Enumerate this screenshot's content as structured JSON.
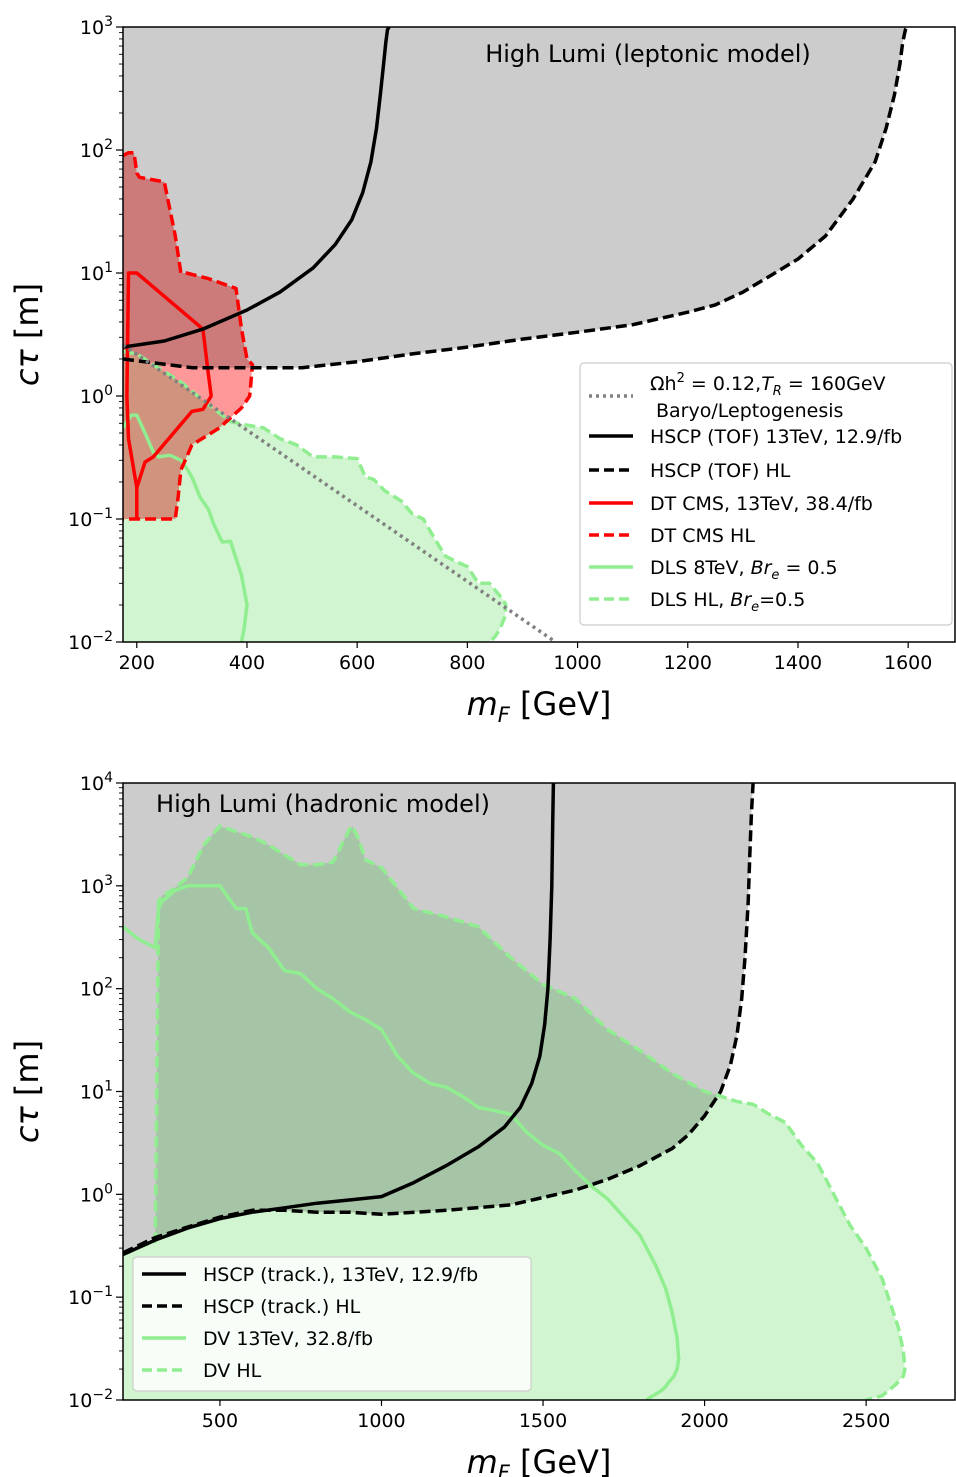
{
  "chart_data": [
    {
      "type": "area",
      "annotation": "High Lumi (leptonic model)",
      "xlabel": "m_F [GeV]",
      "ylabel": "cτ [m]",
      "xlim": [
        175,
        1685
      ],
      "ylim": [
        0.01,
        1000
      ],
      "yscale": "log",
      "xticks": [
        200,
        400,
        600,
        800,
        1000,
        1200,
        1400,
        1600
      ],
      "yticks": [
        0.01,
        0.1,
        1,
        10,
        100,
        1000
      ],
      "ytick_labels": [
        {
          "base": "10",
          "exp": "−2"
        },
        {
          "base": "10",
          "exp": "−1"
        },
        {
          "base": "10",
          "exp": "0"
        },
        {
          "base": "10",
          "exp": "1"
        },
        {
          "base": "10",
          "exp": "2"
        },
        {
          "base": "10",
          "exp": "3"
        }
      ],
      "legend_position": "right",
      "series": [
        {
          "key": "bbn",
          "color": "#808080",
          "dash": "dotted",
          "fill": null,
          "label_lines": [
            "Ωh² = 0.12, T_R = 160GeV",
            "Baryo/Leptogenesis"
          ],
          "x": [
            175,
            960
          ],
          "y": [
            2.6,
            0.01
          ]
        },
        {
          "key": "hscp_13",
          "color": "#000000",
          "dash": "solid",
          "fill": null,
          "label": "HSCP (TOF) 13TeV, 12.9/fb",
          "x": [
            175,
            250,
            320,
            400,
            460,
            520,
            560,
            590,
            610,
            625,
            635,
            642,
            648,
            652,
            655,
            658
          ],
          "y": [
            2.5,
            2.8,
            3.5,
            5.0,
            7.0,
            11,
            17,
            27,
            45,
            80,
            150,
            280,
            500,
            750,
            950,
            1000
          ]
        },
        {
          "key": "hscp_hl",
          "color": "#000000",
          "dash": "dashed",
          "fill": "#cccccc",
          "label": "HSCP (TOF) HL",
          "x": [
            175,
            300,
            350,
            500,
            600,
            700,
            800,
            900,
            1000,
            1100,
            1200,
            1250,
            1300,
            1350,
            1400,
            1450,
            1500,
            1540,
            1560,
            1575,
            1585,
            1590,
            1595,
            1598
          ],
          "y": [
            2.0,
            1.7,
            1.7,
            1.7,
            1.9,
            2.2,
            2.5,
            2.9,
            3.3,
            3.8,
            4.8,
            5.5,
            7.0,
            9.5,
            13,
            20,
            40,
            80,
            150,
            280,
            500,
            750,
            950,
            1000
          ]
        },
        {
          "key": "dt_13",
          "color": "#ff0000",
          "dash": "solid",
          "fill": null,
          "label": "DT CMS, 13TeV, 38.4/fb",
          "x": [
            200,
            200,
            185,
            182,
            185,
            200,
            320,
            330,
            335,
            320,
            300,
            230,
            215,
            200,
            200
          ],
          "y": [
            0.1,
            0.18,
            0.45,
            1.0,
            10,
            10,
            3.5,
            1.5,
            1.0,
            0.78,
            0.75,
            0.32,
            0.29,
            0.18,
            0.1
          ]
        },
        {
          "key": "dt_hl",
          "color": "#ff0000",
          "dash": "dashed",
          "fill": "#ff9999",
          "label": "DT CMS HL",
          "x": [
            175,
            185,
            195,
            200,
            205,
            250,
            270,
            280,
            290,
            330,
            380,
            390,
            400,
            410,
            405,
            390,
            350,
            300,
            280,
            275,
            270,
            175
          ],
          "y": [
            90,
            95,
            95,
            65,
            60,
            55,
            20,
            10,
            10,
            9.0,
            7.5,
            3.5,
            2.0,
            1.8,
            1.0,
            0.8,
            0.55,
            0.4,
            0.25,
            0.15,
            0.1,
            0.1
          ]
        },
        {
          "key": "dls_8",
          "color": "#90ee90",
          "dash": "solid",
          "fill": null,
          "label": "DLS 8TeV, Br_e = 0.5",
          "x": [
            175,
            190,
            200,
            215,
            230,
            240,
            260,
            280,
            290,
            300,
            315,
            330,
            340,
            355,
            370,
            390,
            400,
            395,
            390
          ],
          "y": [
            0.55,
            0.7,
            0.7,
            0.5,
            0.35,
            0.32,
            0.33,
            0.3,
            0.26,
            0.22,
            0.15,
            0.12,
            0.09,
            0.065,
            0.066,
            0.035,
            0.02,
            0.013,
            0.01
          ]
        },
        {
          "key": "dls_hl",
          "color": "#90ee90",
          "dash": "dashed",
          "fill": "#d0f5d0",
          "label": "DLS HL, Br_e=0.5",
          "x": [
            175,
            200,
            230,
            280,
            330,
            370,
            400,
            430,
            460,
            490,
            520,
            560,
            600,
            615,
            630,
            650,
            680,
            700,
            720,
            740,
            760,
            780,
            800,
            820,
            840,
            855,
            865,
            870,
            868,
            860,
            850,
            840
          ],
          "y": [
            2.3,
            2.2,
            1.8,
            1.3,
            0.85,
            0.62,
            0.58,
            0.55,
            0.45,
            0.4,
            0.32,
            0.32,
            0.31,
            0.22,
            0.21,
            0.17,
            0.14,
            0.11,
            0.1,
            0.07,
            0.05,
            0.045,
            0.041,
            0.03,
            0.03,
            0.025,
            0.022,
            0.02,
            0.016,
            0.013,
            0.011,
            0.01
          ]
        }
      ]
    },
    {
      "type": "area",
      "annotation": "High Lumi (hadronic model)",
      "xlabel": "m_F [GeV]",
      "ylabel": "cτ [m]",
      "xlim": [
        200,
        2775
      ],
      "ylim": [
        0.01,
        10000
      ],
      "yscale": "log",
      "xticks": [
        500,
        1000,
        1500,
        2000,
        2500
      ],
      "yticks": [
        0.01,
        0.1,
        1,
        10,
        100,
        1000,
        10000
      ],
      "ytick_labels": [
        {
          "base": "10",
          "exp": "−2"
        },
        {
          "base": "10",
          "exp": "−1"
        },
        {
          "base": "10",
          "exp": "0"
        },
        {
          "base": "10",
          "exp": "1"
        },
        {
          "base": "10",
          "exp": "2"
        },
        {
          "base": "10",
          "exp": "3"
        },
        {
          "base": "10",
          "exp": "4"
        }
      ],
      "legend_position": "lower left",
      "series": [
        {
          "key": "hscp_tr_13",
          "color": "#000000",
          "dash": "solid",
          "fill": null,
          "label": "HSCP (track.), 13TeV, 12.9/fb",
          "x": [
            200,
            300,
            400,
            500,
            600,
            700,
            800,
            900,
            1000,
            1100,
            1200,
            1300,
            1380,
            1430,
            1465,
            1490,
            1505,
            1515,
            1522,
            1527,
            1530,
            1532
          ],
          "y": [
            0.26,
            0.36,
            0.47,
            0.58,
            0.67,
            0.74,
            0.82,
            0.88,
            0.95,
            1.3,
            1.9,
            2.9,
            4.5,
            7.0,
            12,
            22,
            45,
            100,
            300,
            1000,
            4000,
            10000
          ]
        },
        {
          "key": "hscp_tr_hl",
          "color": "#000000",
          "dash": "dashed",
          "fill": "#cccccc",
          "label": "HSCP (track.) HL",
          "x": [
            200,
            300,
            400,
            500,
            600,
            700,
            800,
            900,
            1000,
            1200,
            1400,
            1600,
            1700,
            1800,
            1900,
            1950,
            2000,
            2050,
            2080,
            2100,
            2115,
            2125,
            2135,
            2140,
            2145,
            2150
          ],
          "y": [
            0.27,
            0.38,
            0.48,
            0.6,
            0.7,
            0.7,
            0.67,
            0.67,
            0.64,
            0.7,
            0.79,
            1.1,
            1.4,
            1.9,
            2.8,
            3.8,
            5.8,
            10,
            18,
            35,
            80,
            200,
            700,
            2000,
            5000,
            10000
          ]
        },
        {
          "key": "dv_13",
          "color": "#90ee90",
          "dash": "solid",
          "fill": null,
          "label": "DV 13TeV, 32.8/fb",
          "x": [
            200,
            250,
            300,
            310,
            320,
            360,
            400,
            450,
            500,
            550,
            580,
            600,
            650,
            700,
            750,
            800,
            850,
            900,
            950,
            1000,
            1050,
            1100,
            1150,
            1200,
            1250,
            1300,
            1350,
            1400,
            1450,
            1500,
            1550,
            1600,
            1650,
            1700,
            1750,
            1800,
            1850,
            1880,
            1900,
            1915,
            1920,
            1915,
            1905,
            1890,
            1875,
            1860,
            1840,
            1820
          ],
          "y": [
            400,
            300,
            250,
            600,
            700,
            900,
            1000,
            1000,
            1000,
            600,
            600,
            350,
            250,
            150,
            140,
            100,
            80,
            60,
            50,
            40,
            22,
            15,
            12,
            11,
            9.0,
            7.0,
            6.5,
            6.0,
            4.0,
            3.0,
            2.5,
            1.7,
            1.2,
            0.9,
            0.6,
            0.4,
            0.2,
            0.12,
            0.07,
            0.04,
            0.025,
            0.02,
            0.017,
            0.015,
            0.013,
            0.012,
            0.011,
            0.01
          ]
        },
        {
          "key": "dv_hl",
          "color": "#90ee90",
          "dash": "dashed",
          "fill": "#d0f5d0",
          "label": "DV HL",
          "x": [
            200,
            300,
            310,
            320,
            350,
            400,
            450,
            500,
            600,
            650,
            700,
            750,
            800,
            850,
            900,
            910,
            930,
            950,
            1000,
            1100,
            1200,
            1300,
            1400,
            1500,
            1600,
            1700,
            1800,
            1900,
            2000,
            2050,
            2100,
            2150,
            2200,
            2250,
            2300,
            2350,
            2400,
            2450,
            2500,
            2550,
            2600,
            2615,
            2620,
            2615,
            2590,
            2550,
            2500
          ],
          "y": [
            0.27,
            0.35,
            700,
            800,
            900,
            1200,
            2500,
            3800,
            3000,
            2500,
            2000,
            1600,
            1600,
            1700,
            3500,
            3800,
            2800,
            1800,
            1500,
            600,
            500,
            400,
            200,
            110,
            80,
            40,
            25,
            15,
            10,
            9.0,
            8.0,
            7.5,
            6.0,
            5.0,
            3.0,
            2.0,
            1.0,
            0.5,
            0.3,
            0.15,
            0.05,
            0.03,
            0.02,
            0.017,
            0.014,
            0.011,
            0.01
          ]
        }
      ]
    }
  ]
}
